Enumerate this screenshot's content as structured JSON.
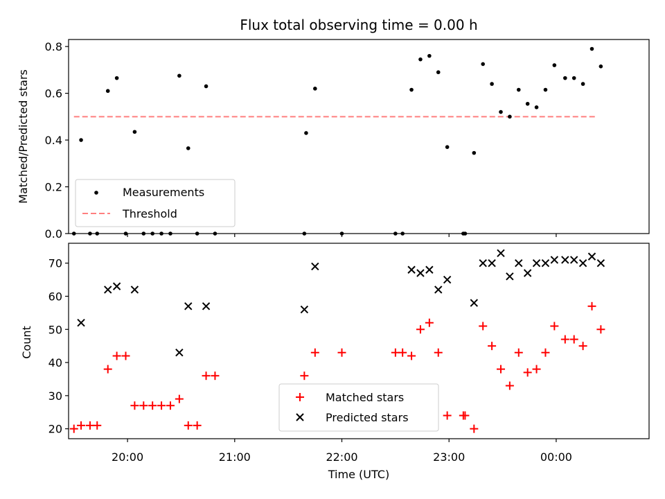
{
  "chart_data": [
    {
      "type": "scatter",
      "title": "Flux total observing time = 0.00 h",
      "xlabel": "",
      "ylabel": "Matched/Predicted stars",
      "ylim": [
        0,
        0.83
      ],
      "yticks": [
        "0.0",
        "0.2",
        "0.4",
        "0.6",
        "0.8"
      ],
      "xlim": [
        "19:27",
        "00:52"
      ],
      "grid": false,
      "legend_position": "bottom-left",
      "series": [
        {
          "name": "Measurements",
          "color": "#000000",
          "marker": "dot",
          "points": [
            [
              "19:30",
              0.0
            ],
            [
              "19:34",
              0.4
            ],
            [
              "19:39",
              0.0
            ],
            [
              "19:43",
              0.0
            ],
            [
              "19:49",
              0.61
            ],
            [
              "19:54",
              0.665
            ],
            [
              "19:59",
              0.0
            ],
            [
              "20:04",
              0.435
            ],
            [
              "20:09",
              0.0
            ],
            [
              "20:14",
              0.0
            ],
            [
              "20:19",
              0.0
            ],
            [
              "20:24",
              0.0
            ],
            [
              "20:29",
              0.675
            ],
            [
              "20:34",
              0.365
            ],
            [
              "20:39",
              0.0
            ],
            [
              "20:44",
              0.63
            ],
            [
              "20:49",
              0.0
            ],
            [
              "21:39",
              0.0
            ],
            [
              "21:40",
              0.43
            ],
            [
              "21:45",
              0.62
            ],
            [
              "22:00",
              0.0
            ],
            [
              "22:30",
              0.0
            ],
            [
              "22:34",
              0.0
            ],
            [
              "22:39",
              0.615
            ],
            [
              "22:44",
              0.745
            ],
            [
              "22:49",
              0.76
            ],
            [
              "22:54",
              0.69
            ],
            [
              "22:59",
              0.37
            ],
            [
              "23:08",
              0.0
            ],
            [
              "23:09",
              0.0
            ],
            [
              "23:14",
              0.345
            ],
            [
              "23:19",
              0.725
            ],
            [
              "23:24",
              0.64
            ],
            [
              "23:29",
              0.52
            ],
            [
              "23:34",
              0.5
            ],
            [
              "23:39",
              0.615
            ],
            [
              "23:44",
              0.555
            ],
            [
              "23:49",
              0.54
            ],
            [
              "23:54",
              0.615
            ],
            [
              "23:59",
              0.72
            ],
            [
              "00:05",
              0.665
            ],
            [
              "00:10",
              0.665
            ],
            [
              "00:15",
              0.64
            ],
            [
              "00:20",
              0.79
            ],
            [
              "00:25",
              0.715
            ]
          ]
        },
        {
          "name": "Threshold",
          "color": "#ff7f7f",
          "marker": "dashed-line",
          "points": [
            [
              "19:30",
              0.5
            ],
            [
              "00:23",
              0.5
            ]
          ]
        }
      ]
    },
    {
      "type": "scatter",
      "title": "",
      "xlabel": "Time (UTC)",
      "ylabel": "Count",
      "ylim": [
        17,
        76
      ],
      "yticks": [
        "20",
        "30",
        "40",
        "50",
        "60",
        "70"
      ],
      "xlim": [
        "19:27",
        "00:52"
      ],
      "xticks": [
        "20:00",
        "21:00",
        "22:00",
        "23:00",
        "00:00"
      ],
      "grid": false,
      "legend_position": "bottom-center",
      "series": [
        {
          "name": "Matched stars",
          "color": "#ff0000",
          "marker": "plus",
          "points": [
            [
              "19:30",
              20
            ],
            [
              "19:34",
              21
            ],
            [
              "19:39",
              21
            ],
            [
              "19:43",
              21
            ],
            [
              "19:49",
              38
            ],
            [
              "19:54",
              42
            ],
            [
              "19:59",
              42
            ],
            [
              "20:04",
              27
            ],
            [
              "20:09",
              27
            ],
            [
              "20:14",
              27
            ],
            [
              "20:19",
              27
            ],
            [
              "20:24",
              27
            ],
            [
              "20:29",
              29
            ],
            [
              "20:34",
              21
            ],
            [
              "20:39",
              21
            ],
            [
              "20:44",
              36
            ],
            [
              "20:49",
              36
            ],
            [
              "21:39",
              36
            ],
            [
              "21:45",
              43
            ],
            [
              "22:00",
              43
            ],
            [
              "22:30",
              43
            ],
            [
              "22:34",
              43
            ],
            [
              "22:39",
              42
            ],
            [
              "22:44",
              50
            ],
            [
              "22:49",
              52
            ],
            [
              "22:54",
              43
            ],
            [
              "22:59",
              24
            ],
            [
              "23:08",
              24
            ],
            [
              "23:09",
              24
            ],
            [
              "23:14",
              20
            ],
            [
              "23:19",
              51
            ],
            [
              "23:24",
              45
            ],
            [
              "23:29",
              38
            ],
            [
              "23:34",
              33
            ],
            [
              "23:39",
              43
            ],
            [
              "23:44",
              37
            ],
            [
              "23:49",
              38
            ],
            [
              "23:54",
              43
            ],
            [
              "23:59",
              51
            ],
            [
              "00:05",
              47
            ],
            [
              "00:10",
              47
            ],
            [
              "00:15",
              45
            ],
            [
              "00:20",
              57
            ],
            [
              "00:25",
              50
            ]
          ]
        },
        {
          "name": "Predicted stars",
          "color": "#000000",
          "marker": "x",
          "points": [
            [
              "19:34",
              52
            ],
            [
              "19:49",
              62
            ],
            [
              "19:54",
              63
            ],
            [
              "20:04",
              62
            ],
            [
              "20:29",
              43
            ],
            [
              "20:34",
              57
            ],
            [
              "20:44",
              57
            ],
            [
              "21:39",
              56
            ],
            [
              "21:45",
              69
            ],
            [
              "22:39",
              68
            ],
            [
              "22:44",
              67
            ],
            [
              "22:49",
              68
            ],
            [
              "22:54",
              62
            ],
            [
              "22:59",
              65
            ],
            [
              "23:14",
              58
            ],
            [
              "23:19",
              70
            ],
            [
              "23:24",
              70
            ],
            [
              "23:29",
              73
            ],
            [
              "23:34",
              66
            ],
            [
              "23:39",
              70
            ],
            [
              "23:44",
              67
            ],
            [
              "23:49",
              70
            ],
            [
              "23:54",
              70
            ],
            [
              "23:59",
              71
            ],
            [
              "00:05",
              71
            ],
            [
              "00:10",
              71
            ],
            [
              "00:15",
              70
            ],
            [
              "00:20",
              72
            ],
            [
              "00:25",
              70
            ]
          ]
        }
      ]
    }
  ]
}
